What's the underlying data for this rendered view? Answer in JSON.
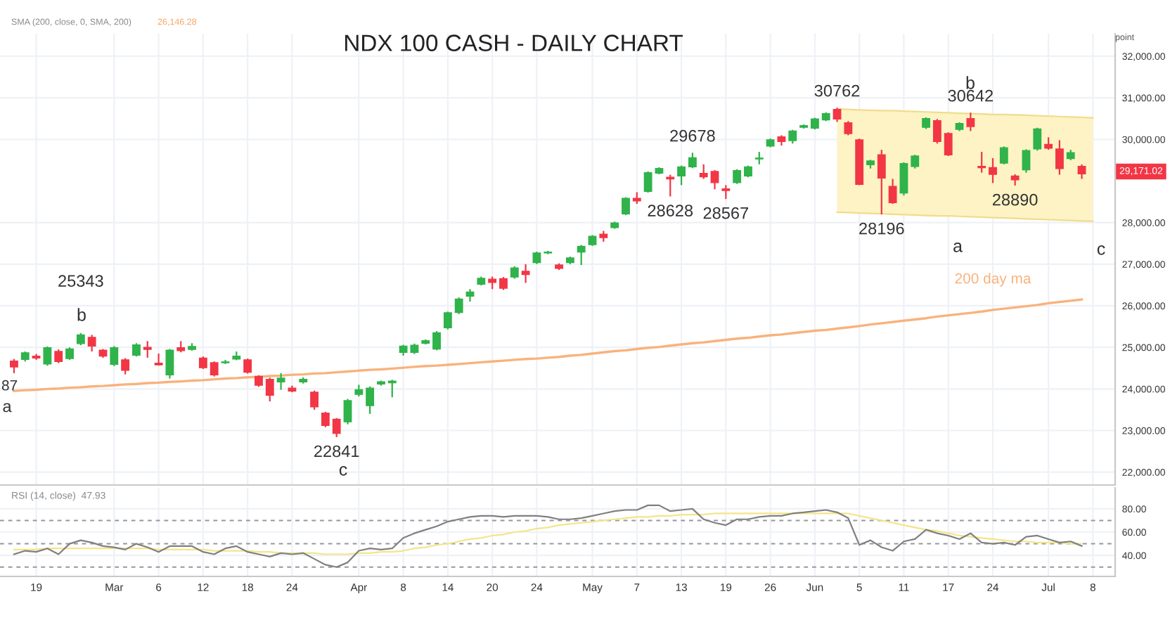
{
  "chart_data": [
    {
      "type": "candlestick",
      "title": "NDX 100 CASH - DAILY CHART",
      "ylabel": "point",
      "ohlc": [
        [
          24670,
          24720,
          24380,
          24530
        ],
        [
          24710,
          24900,
          24660,
          24870
        ],
        [
          24790,
          24840,
          24700,
          24745
        ],
        [
          24600,
          25020,
          24560,
          24990
        ],
        [
          24900,
          24950,
          24620,
          24660
        ],
        [
          24730,
          25000,
          24700,
          24960
        ],
        [
          25090,
          25343,
          25050,
          25300
        ],
        [
          25240,
          25300,
          24900,
          25030
        ],
        [
          24930,
          24960,
          24750,
          24790
        ],
        [
          24590,
          25030,
          24550,
          24990
        ],
        [
          24700,
          24740,
          24350,
          24450
        ],
        [
          24810,
          25100,
          24780,
          25060
        ],
        [
          25000,
          25150,
          24750,
          24950
        ],
        [
          24620,
          24850,
          24560,
          24580
        ],
        [
          24340,
          24960,
          24250,
          24930
        ],
        [
          24990,
          25150,
          24880,
          24920
        ],
        [
          24950,
          25100,
          24920,
          25020
        ],
        [
          24740,
          24780,
          24480,
          24510
        ],
        [
          24630,
          24660,
          24300,
          24340
        ],
        [
          24630,
          24700,
          24600,
          24650
        ],
        [
          24720,
          24900,
          24690,
          24790
        ],
        [
          24700,
          24730,
          24370,
          24400
        ],
        [
          24300,
          24330,
          24050,
          24090
        ],
        [
          24230,
          24270,
          23700,
          23850
        ],
        [
          24170,
          24380,
          23980,
          24260
        ],
        [
          24020,
          24080,
          23920,
          23950
        ],
        [
          24170,
          24280,
          24130,
          24230
        ],
        [
          23920,
          23960,
          23500,
          23570
        ],
        [
          23420,
          23450,
          23080,
          23120
        ],
        [
          23270,
          23300,
          22841,
          22930
        ],
        [
          23210,
          23760,
          23150,
          23720
        ],
        [
          23870,
          24100,
          23820,
          23980
        ],
        [
          23600,
          24060,
          23400,
          24020
        ],
        [
          24120,
          24200,
          24080,
          24170
        ],
        [
          24150,
          24220,
          23800,
          24190
        ],
        [
          24880,
          25060,
          24800,
          25030
        ],
        [
          24880,
          25090,
          24840,
          25050
        ],
        [
          25100,
          25190,
          25070,
          25160
        ],
        [
          24960,
          25390,
          24930,
          25350
        ],
        [
          25470,
          25860,
          25430,
          25830
        ],
        [
          25840,
          26200,
          25800,
          26160
        ],
        [
          26230,
          26400,
          26100,
          26330
        ],
        [
          26520,
          26700,
          26490,
          26660
        ],
        [
          26640,
          26700,
          26400,
          26560
        ],
        [
          26650,
          26690,
          26380,
          26420
        ],
        [
          26690,
          26950,
          26650,
          26910
        ],
        [
          26830,
          27000,
          26550,
          26750
        ],
        [
          27040,
          27300,
          27000,
          27270
        ],
        [
          27270,
          27320,
          27240,
          27290
        ],
        [
          26980,
          27020,
          26860,
          26900
        ],
        [
          27040,
          27180,
          27000,
          27150
        ],
        [
          27290,
          27460,
          26980,
          27430
        ],
        [
          27470,
          27700,
          27440,
          27670
        ],
        [
          27720,
          27800,
          27540,
          27640
        ],
        [
          27880,
          28020,
          27850,
          27990
        ],
        [
          28210,
          28610,
          28180,
          28580
        ],
        [
          28580,
          28730,
          28450,
          28520
        ],
        [
          28750,
          29230,
          28720,
          29200
        ],
        [
          29190,
          29330,
          29160,
          29300
        ],
        [
          29090,
          29150,
          28628,
          29050
        ],
        [
          29120,
          29370,
          28900,
          29340
        ],
        [
          29340,
          29678,
          29310,
          29560
        ],
        [
          29180,
          29400,
          29050,
          29100
        ],
        [
          29230,
          29260,
          28800,
          28960
        ],
        [
          28810,
          28900,
          28567,
          28770
        ],
        [
          28960,
          29280,
          28930,
          29250
        ],
        [
          29120,
          29370,
          29090,
          29340
        ],
        [
          29530,
          29700,
          29400,
          29550
        ],
        [
          29840,
          30020,
          29810,
          29990
        ],
        [
          30060,
          30100,
          29850,
          29950
        ],
        [
          29970,
          30230,
          29900,
          30200
        ],
        [
          30290,
          30360,
          30260,
          30330
        ],
        [
          30270,
          30520,
          30240,
          30490
        ],
        [
          30470,
          30650,
          30440,
          30620
        ],
        [
          30720,
          30762,
          30420,
          30490
        ],
        [
          30400,
          30440,
          30100,
          30140
        ],
        [
          29990,
          30020,
          28900,
          28920
        ],
        [
          29390,
          29510,
          29300,
          29480
        ],
        [
          29630,
          29750,
          28196,
          29070
        ],
        [
          28870,
          29050,
          28450,
          28480
        ],
        [
          28710,
          29450,
          28650,
          29420
        ],
        [
          29350,
          29630,
          29300,
          29600
        ],
        [
          30290,
          30530,
          30250,
          30500
        ],
        [
          30450,
          30490,
          29900,
          29950
        ],
        [
          30140,
          30170,
          29600,
          29630
        ],
        [
          30240,
          30410,
          30200,
          30380
        ],
        [
          30500,
          30642,
          30200,
          30310
        ],
        [
          29350,
          29700,
          29200,
          29320
        ],
        [
          29320,
          29550,
          28950,
          29160
        ],
        [
          29430,
          29830,
          29400,
          29800
        ],
        [
          29120,
          29160,
          28890,
          29030
        ],
        [
          29270,
          29760,
          29200,
          29730
        ],
        [
          29770,
          30280,
          29730,
          30250
        ],
        [
          29880,
          30050,
          29750,
          29790
        ],
        [
          29770,
          29980,
          29150,
          29300
        ],
        [
          29540,
          29750,
          29500,
          29680
        ],
        [
          29350,
          29400,
          29050,
          29171
        ],
        null
      ],
      "series": [
        {
          "type": "line",
          "color": "#f0dc8c",
          "values": [
            null,
            null,
            null,
            null,
            null,
            null,
            null,
            null,
            null,
            null,
            null,
            null,
            null,
            null,
            null,
            null,
            null,
            null,
            null,
            null,
            null,
            null,
            null,
            null,
            null,
            null,
            null,
            null,
            null,
            null,
            null,
            null,
            null,
            null,
            null,
            null,
            null,
            null,
            null,
            null,
            null,
            null,
            null,
            null,
            null,
            null,
            null,
            null,
            null,
            null,
            null,
            null,
            null,
            null,
            null,
            null,
            null,
            null,
            null,
            null,
            null,
            null,
            null,
            null,
            null,
            null,
            null,
            null,
            null,
            null,
            null,
            null,
            null,
            null,
            30730,
            30720,
            30710,
            30700,
            30690,
            30690,
            30680,
            30670,
            30660,
            30650,
            30640,
            30630,
            30620,
            30610,
            30600,
            30600,
            30590,
            30580,
            30570,
            30560,
            30550,
            30540,
            30530,
            30520
          ]
        },
        {
          "type": "line",
          "color": "#f0dc8c",
          "values": [
            null,
            null,
            null,
            null,
            null,
            null,
            null,
            null,
            null,
            null,
            null,
            null,
            null,
            null,
            null,
            null,
            null,
            null,
            null,
            null,
            null,
            null,
            null,
            null,
            null,
            null,
            null,
            null,
            null,
            null,
            null,
            null,
            null,
            null,
            null,
            null,
            null,
            null,
            null,
            null,
            null,
            null,
            null,
            null,
            null,
            null,
            null,
            null,
            null,
            null,
            null,
            null,
            null,
            null,
            null,
            null,
            null,
            null,
            null,
            null,
            null,
            null,
            null,
            null,
            null,
            null,
            null,
            null,
            null,
            null,
            null,
            null,
            null,
            null,
            28250,
            28240,
            28230,
            28220,
            28210,
            28200,
            28190,
            28180,
            28170,
            28160,
            28160,
            28150,
            28140,
            28130,
            28120,
            28110,
            28100,
            28090,
            28080,
            28070,
            28060,
            28050,
            28040,
            28030
          ]
        },
        {
          "type": "line",
          "name": "200 day ma",
          "color": "#f9b27c",
          "values": [
            23950,
            23970,
            23980,
            24000,
            24010,
            24030,
            24040,
            24060,
            24070,
            24090,
            24110,
            24120,
            24140,
            24150,
            24170,
            24180,
            24200,
            24210,
            24230,
            24250,
            24260,
            24280,
            24290,
            24310,
            24320,
            24340,
            24350,
            24370,
            24380,
            24400,
            24420,
            24440,
            24460,
            24470,
            24490,
            24510,
            24530,
            24550,
            24560,
            24580,
            24600,
            24620,
            24640,
            24660,
            24680,
            24700,
            24720,
            24730,
            24750,
            24770,
            24800,
            24820,
            24850,
            24880,
            24910,
            24930,
            24960,
            24990,
            25010,
            25040,
            25070,
            25100,
            25120,
            25150,
            25180,
            25210,
            25230,
            25260,
            25290,
            25310,
            25340,
            25370,
            25400,
            25420,
            25450,
            25480,
            25510,
            25550,
            25580,
            25610,
            25640,
            25670,
            25700,
            25740,
            25770,
            25800,
            25830,
            25860,
            25900,
            25930,
            25960,
            25990,
            26020,
            26060,
            26090,
            26120,
            26150,
            null
          ]
        }
      ],
      "ylim": [
        21690,
        32540
      ],
      "yticks": [
        {
          "value": 22000,
          "label": "22,000.00"
        },
        {
          "value": 23000,
          "label": "23,000.00"
        },
        {
          "value": 24000,
          "label": "24,000.00"
        },
        {
          "value": 25000,
          "label": "25,000.00"
        },
        {
          "value": 26000,
          "label": "26,000.00"
        },
        {
          "value": 27000,
          "label": "27,000.00"
        },
        {
          "value": 28000,
          "label": "28,000.00"
        },
        {
          "value": 30000,
          "label": "30,000.00"
        },
        {
          "value": 31000,
          "label": "31,000.00"
        },
        {
          "value": 32000,
          "label": "32,000.00"
        }
      ],
      "grid": true,
      "tick_labels": "y",
      "annotations": [
        "SMA (200, close, 0, SMA, 200)",
        "26,146.28",
        "87",
        "a",
        {
          "text": "25343",
          "y": 25343
        },
        "b",
        {
          "text": "22841",
          "y": 22841
        },
        "c",
        {
          "text": "29678",
          "y": 29678
        },
        {
          "text": "28628",
          "y": 28628
        },
        {
          "text": "28567",
          "y": 28567
        },
        {
          "text": "30762",
          "y": 30762
        },
        {
          "text": "28196",
          "y": 28196
        },
        "a",
        "b",
        {
          "text": "30642",
          "y": 30642
        },
        {
          "text": "28890",
          "y": 28890
        },
        "c",
        "29,171.02"
      ]
    },
    {
      "type": "line",
      "categories": [
        null,
        null,
        "19",
        null,
        null,
        null,
        null,
        null,
        null,
        "Mar",
        null,
        null,
        null,
        "6",
        null,
        null,
        null,
        "12",
        null,
        null,
        null,
        "18",
        null,
        null,
        null,
        "24",
        null,
        null,
        null,
        null,
        null,
        "Apr",
        null,
        null,
        null,
        "8",
        null,
        null,
        null,
        "14",
        null,
        null,
        null,
        "20",
        null,
        null,
        null,
        "24",
        null,
        null,
        null,
        null,
        "May",
        null,
        null,
        null,
        "7",
        null,
        null,
        null,
        "13",
        null,
        null,
        null,
        "19",
        null,
        null,
        null,
        "26",
        null,
        null,
        null,
        "Jun",
        null,
        null,
        null,
        "5",
        null,
        null,
        null,
        "11",
        null,
        null,
        null,
        "17",
        null,
        null,
        null,
        "24",
        null,
        null,
        null,
        null,
        "Jul",
        null,
        null,
        null,
        "8"
      ],
      "series": [
        {
          "color": "#f3e58a",
          "values": [
            45,
            45,
            45,
            46,
            46,
            46,
            46,
            46,
            46,
            46,
            46,
            46,
            46,
            45,
            45,
            45,
            45,
            45,
            44,
            44,
            44,
            44,
            43,
            43,
            42,
            42,
            42,
            42,
            41,
            41,
            41,
            42,
            42,
            43,
            43,
            44,
            46,
            47,
            49,
            50,
            52,
            54,
            55,
            57,
            58,
            60,
            61,
            63,
            64,
            66,
            67,
            68,
            69,
            70,
            71,
            72,
            73,
            73,
            74,
            74,
            75,
            75,
            75,
            76,
            76,
            76,
            76,
            76,
            76,
            76,
            76,
            76,
            76,
            76,
            76,
            76,
            74,
            72,
            70,
            68,
            66,
            64,
            62,
            61,
            59,
            57,
            56,
            55,
            54,
            53,
            52,
            52,
            51,
            51,
            51,
            50,
            50,
            null
          ]
        },
        {
          "color": "#808080",
          "values": [
            41,
            44,
            43,
            46,
            41,
            50,
            53,
            51,
            48,
            47,
            45,
            50,
            47,
            43,
            48,
            48,
            48,
            43,
            41,
            46,
            48,
            43,
            41,
            39,
            42,
            41,
            42,
            37,
            32,
            30,
            34,
            44,
            46,
            45,
            46,
            55,
            59,
            62,
            65,
            69,
            71,
            73,
            74,
            74,
            73,
            74,
            74,
            74,
            73,
            71,
            71,
            72,
            74,
            76,
            78,
            79,
            79,
            83,
            83,
            78,
            79,
            80,
            71,
            68,
            66,
            71,
            71,
            73,
            74,
            74,
            76,
            77,
            78,
            79,
            77,
            72,
            49,
            53,
            47,
            44,
            52,
            54,
            62,
            59,
            57,
            54,
            59,
            51,
            50,
            51,
            49,
            56,
            57,
            54,
            51,
            52,
            48,
            null
          ]
        }
      ],
      "ylim": [
        22,
        98
      ],
      "yticks": [
        {
          "value": 40,
          "label": "40.00"
        },
        {
          "value": 60,
          "label": "60.00"
        },
        {
          "value": 80,
          "label": "80.00"
        }
      ],
      "ref_lines": [
        {
          "axis": "y",
          "value": 70,
          "line_style": "dashed",
          "color": "#9598a1"
        },
        {
          "axis": "y",
          "value": 50,
          "line_style": "dashed",
          "color": "#9598a1"
        },
        {
          "axis": "y",
          "value": 30,
          "line_style": "dashed",
          "color": "#9598a1"
        }
      ],
      "grid": true,
      "annotations": [
        "RSI (14, close)  47.93"
      ]
    }
  ]
}
